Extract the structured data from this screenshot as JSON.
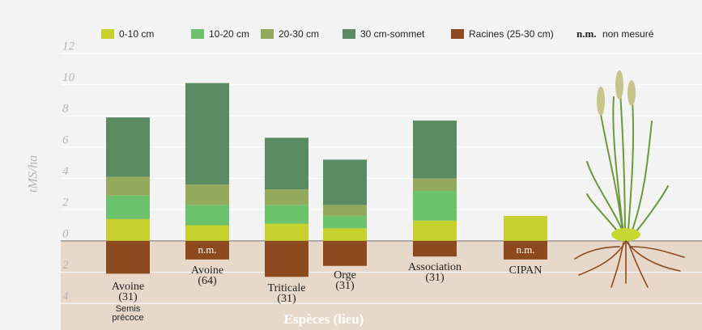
{
  "chart_data": {
    "type": "bar",
    "stacked": true,
    "y_label": "tMS/ha",
    "x_label": "Espèces (lieu)",
    "categories": [
      "Avoine",
      "Avoine",
      "Triticale",
      "Orge",
      "Association",
      "CIPAN"
    ],
    "locations": [
      "(31)",
      "(64)",
      "(31)",
      "(31)",
      "(31)",
      null
    ],
    "note": [
      "Semis",
      "précoce"
    ],
    "series": [
      {
        "name": "0-10 cm",
        "color": "#c6d12e",
        "values": [
          1.4,
          1.0,
          1.1,
          0.8,
          1.3,
          1.6
        ]
      },
      {
        "name": "10-20 cm",
        "color": "#6cc36c",
        "values": [
          1.5,
          1.3,
          1.2,
          0.8,
          1.9,
          null
        ]
      },
      {
        "name": "20-30 cm",
        "color": "#93a95c",
        "values": [
          1.2,
          1.3,
          1.0,
          0.7,
          0.8,
          null
        ]
      },
      {
        "name": "30 cm-sommet",
        "color": "#5b8b62",
        "values": [
          3.8,
          6.5,
          3.3,
          2.9,
          3.7,
          null
        ]
      },
      {
        "name": "Racines (25-30 cm)",
        "color": "#8c4a1e",
        "values": [
          -2.1,
          null,
          -2.3,
          -1.6,
          -1.0,
          null
        ]
      }
    ],
    "not_measured": {
      "abbr": "n.m.",
      "label": "non mesuré"
    },
    "ylim": [
      -5.6,
      12
    ],
    "yticks": [
      {
        "value": -4,
        "label": "4"
      },
      {
        "value": -2,
        "label": "2"
      },
      0,
      2,
      4,
      6,
      8,
      10,
      12
    ],
    "grid": true
  }
}
